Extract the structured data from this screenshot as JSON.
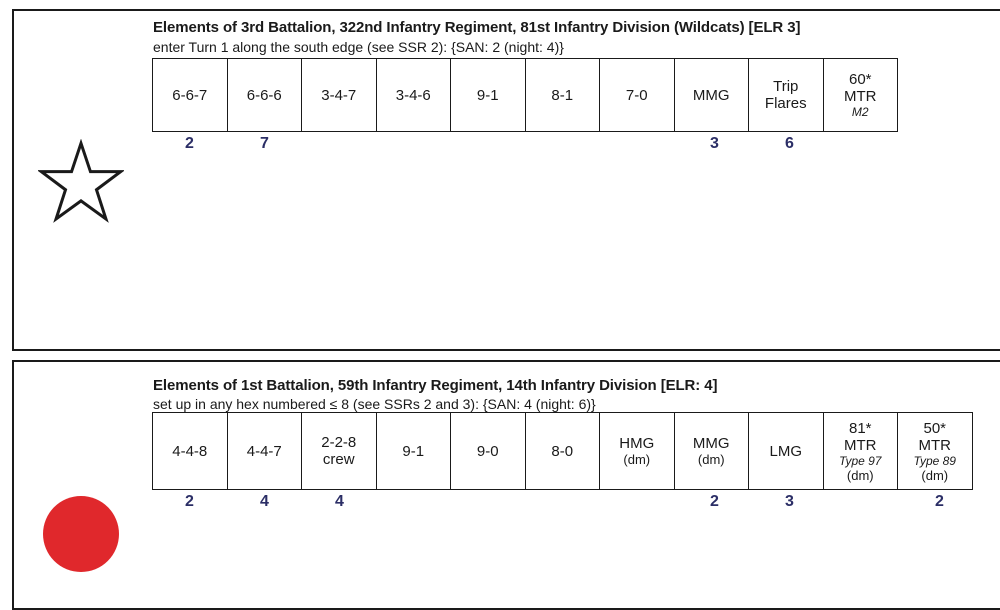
{
  "us": {
    "title": "Elements of 3rd Battalion, 322nd Infantry Regiment, 81st Infantry Division (Wildcats) [ELR 3]",
    "subtitle": "enter Turn 1 along the south edge (see SSR 2): {SAN: 2 (night: 4)}",
    "icon": "star-icon",
    "units": [
      {
        "lines": [
          "6-6-7"
        ],
        "count": "2"
      },
      {
        "lines": [
          "6-6-6"
        ],
        "count": "7"
      },
      {
        "lines": [
          "3-4-7"
        ],
        "count": ""
      },
      {
        "lines": [
          "3-4-6"
        ],
        "count": ""
      },
      {
        "lines": [
          "9-1"
        ],
        "count": ""
      },
      {
        "lines": [
          "8-1"
        ],
        "count": ""
      },
      {
        "lines": [
          "7-0"
        ],
        "count": ""
      },
      {
        "lines": [
          "MMG"
        ],
        "count": "3"
      },
      {
        "lines": [
          "Trip",
          "Flares"
        ],
        "count": "6"
      },
      {
        "lines": [
          "60*",
          "MTR"
        ],
        "italic": "M2",
        "count": ""
      }
    ]
  },
  "jp": {
    "title": "Elements of 1st Battalion, 59th Infantry Regiment, 14th Infantry Division [ELR: 4]",
    "subtitle": "set up in any hex numbered ≤ 8 (see SSRs 2 and 3): {SAN: 4 (night: 6)}",
    "icon": "red-circle-icon",
    "units": [
      {
        "lines": [
          "4-4-8"
        ],
        "count": "2"
      },
      {
        "lines": [
          "4-4-7"
        ],
        "count": "4"
      },
      {
        "lines": [
          "2-2-8",
          "crew"
        ],
        "count": "4"
      },
      {
        "lines": [
          "9-1"
        ],
        "count": ""
      },
      {
        "lines": [
          "9-0"
        ],
        "count": ""
      },
      {
        "lines": [
          "8-0"
        ],
        "count": ""
      },
      {
        "lines": [
          "HMG"
        ],
        "sub": "(dm)",
        "count": ""
      },
      {
        "lines": [
          "MMG"
        ],
        "sub": "(dm)",
        "count": "2"
      },
      {
        "lines": [
          "LMG"
        ],
        "count": "3"
      },
      {
        "lines": [
          "81*",
          "MTR"
        ],
        "italic": "Type 97",
        "sub": "(dm)",
        "count": ""
      },
      {
        "lines": [
          "50*",
          "MTR"
        ],
        "italic": "Type 89",
        "sub": "(dm)",
        "count": "2"
      }
    ]
  }
}
